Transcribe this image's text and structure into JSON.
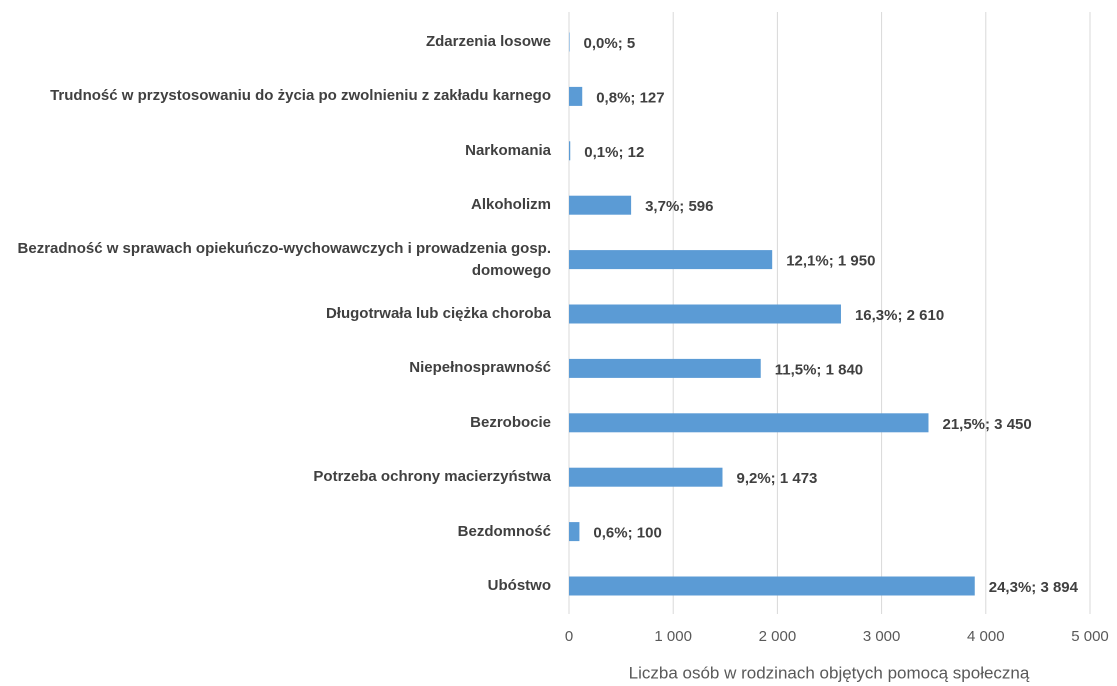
{
  "chart_data": {
    "type": "bar",
    "orientation": "horizontal",
    "x_label": "Liczba osób w rodzinach objętych pomocą społeczną",
    "categories": [
      "Zdarzenia losowe",
      "Trudność w przystosowaniu do życia po zwolnieniu z zakładu karnego",
      "Narkomania",
      "Alkoholizm",
      "Bezradność w sprawach opiekuńczo-wychowawczych i prowadzenia gosp. domowego",
      "Długotrwała lub ciężka choroba",
      "Niepełnosprawność",
      "Bezrobocie",
      "Potrzeba ochrony macierzyństwa",
      "Bezdomność",
      "Ubóstwo"
    ],
    "values": [
      5,
      127,
      12,
      596,
      1950,
      2610,
      1840,
      3450,
      1473,
      100,
      3894
    ],
    "value_labels": [
      "0,0%; 5",
      "0,8%; 127",
      "0,1%; 12",
      "3,7%; 596",
      "12,1%; 1 950",
      "16,3%; 2 610",
      "11,5%; 1 840",
      "21,5%; 3 450",
      "9,2%; 1 473",
      "0,6%; 100",
      "24,3%; 3 894"
    ],
    "color": "#5b9bd5",
    "xlim": [
      0,
      5000
    ],
    "xticks": [
      0,
      {
        "value": 1000,
        "label": "1 000"
      },
      {
        "value": 2000,
        "label": "2 000"
      },
      {
        "value": 3000,
        "label": "3 000"
      },
      {
        "value": 4000,
        "label": "4 000"
      },
      {
        "value": 5000,
        "label": "5 000"
      }
    ],
    "grid": true
  }
}
